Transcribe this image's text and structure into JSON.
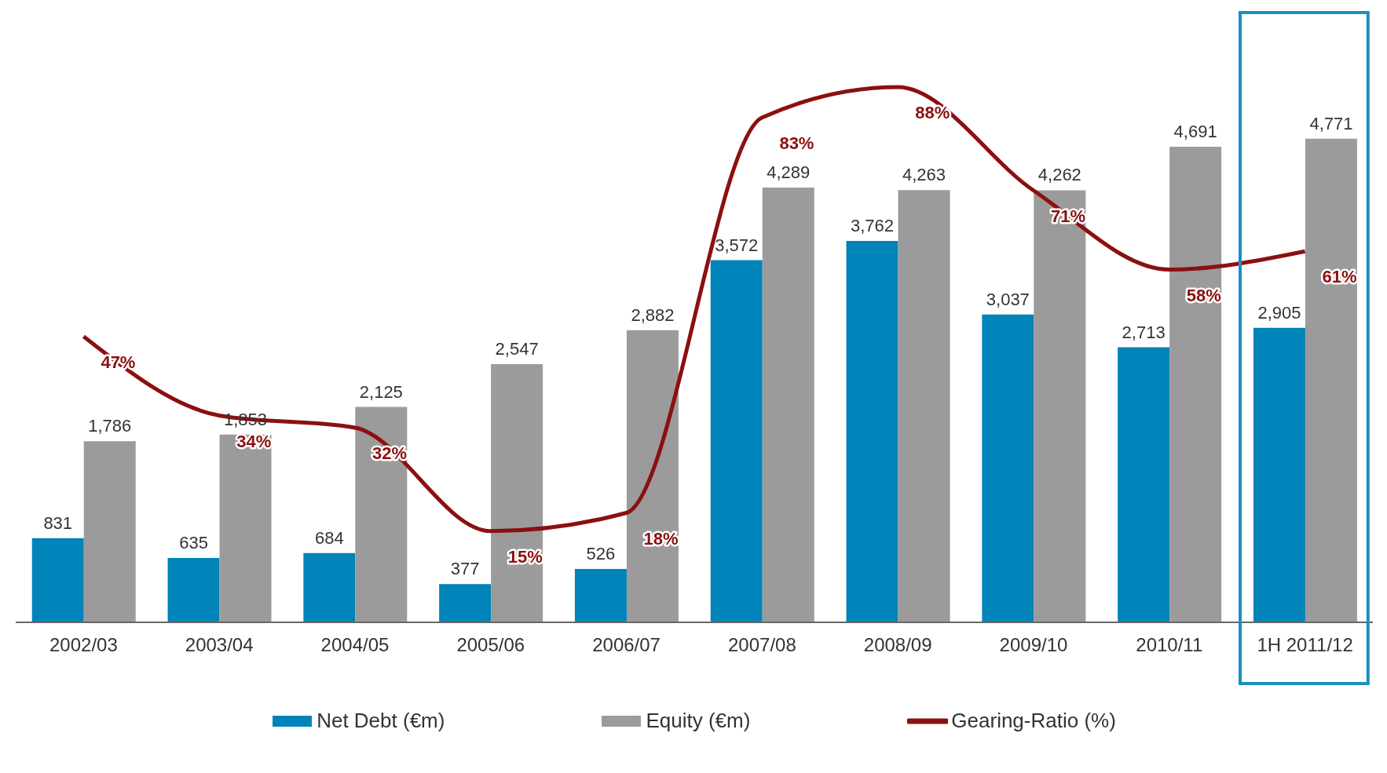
{
  "chart_data": {
    "type": "bar",
    "categories": [
      "2002/03",
      "2003/04",
      "2004/05",
      "2005/06",
      "2006/07",
      "2007/08",
      "2008/09",
      "2009/10",
      "2010/11",
      "1H 2011/12"
    ],
    "series": [
      {
        "name": "Net Debt (€m)",
        "color": "#0083b8",
        "values": [
          831,
          635,
          684,
          377,
          526,
          3572,
          3762,
          3037,
          2713,
          2905
        ],
        "value_labels": [
          "831",
          "635",
          "684",
          "377",
          "526",
          "3,572",
          "3,762",
          "3,037",
          "2,713",
          "2,905"
        ]
      },
      {
        "name": "Equity (€m)",
        "color": "#9b9b9b",
        "values": [
          1786,
          1853,
          2125,
          2547,
          2882,
          4289,
          4263,
          4262,
          4691,
          4771
        ],
        "value_labels": [
          "1,786",
          "1,853",
          "2,125",
          "2,547",
          "2,882",
          "4,289",
          "4,263",
          "4,262",
          "4,691",
          "4,771"
        ]
      },
      {
        "name": "Gearing-Ratio (%)",
        "type": "line",
        "axis": "y2",
        "color": "#8b1010",
        "values": [
          47,
          34,
          32,
          15,
          18,
          83,
          88,
          71,
          58,
          61
        ],
        "value_labels": [
          "47%",
          "34%",
          "32%",
          "15%",
          "18%",
          "83%",
          "88%",
          "71%",
          "58%",
          "61%"
        ]
      }
    ],
    "tick_labels": "x",
    "grid": false,
    "legend": "bottom"
  }
}
